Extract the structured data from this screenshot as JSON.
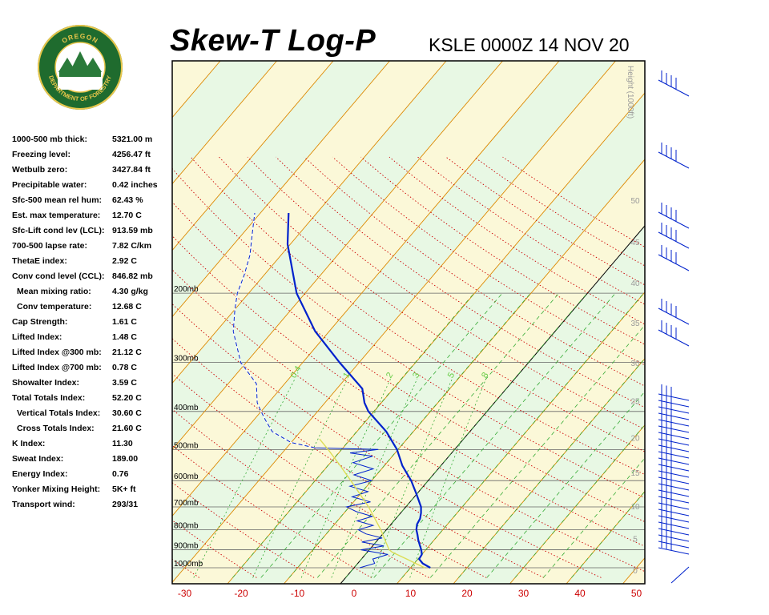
{
  "header": {
    "title": "Skew-T Log-P",
    "station": "KSLE 0000Z 14 NOV 20"
  },
  "logo": {
    "text_top": "OREGON",
    "text_bottom": "DEPARTMENT OF FORESTRY"
  },
  "indices": [
    {
      "label": "1000-500 mb thick:",
      "value": "5321.00 m"
    },
    {
      "label": "Freezing level:",
      "value": "4256.47 ft"
    },
    {
      "label": "Wetbulb zero:",
      "value": "3427.84 ft"
    },
    {
      "label": "Precipitable water:",
      "value": "0.42 inches"
    },
    {
      "label": "Sfc-500 mean rel hum:",
      "value": "62.43 %"
    },
    {
      "label": "Est. max temperature:",
      "value": "12.70 C"
    },
    {
      "label": "Sfc-Lift cond lev (LCL):",
      "value": "913.59 mb"
    },
    {
      "label": "700-500 lapse rate:",
      "value": "7.82 C/km"
    },
    {
      "label": "ThetaE index:",
      "value": "2.92 C"
    },
    {
      "label": "Conv cond level (CCL):",
      "value": "846.82 mb"
    },
    {
      "label": "Mean mixing ratio:",
      "value": "4.30 g/kg",
      "indent": true
    },
    {
      "label": "Conv temperature:",
      "value": "12.68 C",
      "indent": true
    },
    {
      "label": "Cap Strength:",
      "value": "1.61 C"
    },
    {
      "label": "Lifted Index:",
      "value": "1.48 C"
    },
    {
      "label": "Lifted Index @300 mb:",
      "value": "21.12 C"
    },
    {
      "label": "Lifted Index @700 mb:",
      "value": "0.78 C"
    },
    {
      "label": "Showalter Index:",
      "value": "3.59 C"
    },
    {
      "label": "Total Totals Index:",
      "value": "52.20 C"
    },
    {
      "label": "Vertical Totals Index:",
      "value": "30.60 C",
      "indent": true
    },
    {
      "label": "Cross Totals Index:",
      "value": "21.60 C",
      "indent": true
    },
    {
      "label": "K Index:",
      "value": "11.30"
    },
    {
      "label": "Sweat Index:",
      "value": "189.00"
    },
    {
      "label": "Energy Index:",
      "value": "0.76"
    },
    {
      "label": "Yonker Mixing Height:",
      "value": "5K+ ft"
    },
    {
      "label": "Transport wind:",
      "value": "293/31"
    }
  ],
  "chart_data": {
    "type": "line",
    "x_ticks": [
      -30,
      -20,
      -10,
      0,
      10,
      20,
      30,
      40,
      50
    ],
    "pressure_levels": [
      {
        "p": 200,
        "label": "200mb"
      },
      {
        "p": 300,
        "label": "300mb"
      },
      {
        "p": 400,
        "label": "400mb"
      },
      {
        "p": 500,
        "label": "500mb"
      },
      {
        "p": 600,
        "label": "600mb"
      },
      {
        "p": 700,
        "label": "700mb"
      },
      {
        "p": 800,
        "label": "800mb"
      },
      {
        "p": 900,
        "label": "900mb"
      },
      {
        "p": 1000,
        "label": "1000mb"
      }
    ],
    "height_axis_label": "Height (1000ft)",
    "height_ticks": [
      0,
      5,
      10,
      15,
      20,
      25,
      30,
      35,
      40,
      45,
      50
    ],
    "mixing_ratio_labels": [
      "0.4",
      "1",
      "2",
      "3",
      "5",
      "8"
    ],
    "mixing_ratios": [
      0.4,
      1,
      2,
      3,
      5,
      8
    ],
    "colors": {
      "temperature": "#0022cc",
      "dewpoint": "#0022cc",
      "parcel": "#dddd55",
      "isotherm": "#dd8800",
      "dry_adiabat": "#cc0000",
      "moist_adiabat": "#33aa33",
      "mixing_ratio": "#33aa33",
      "band_green": "#e8f8e4",
      "band_yellow": "#fbf8d8"
    },
    "series": [
      {
        "style": "solid",
        "points": [
          [
            1000,
            13.5
          ],
          [
            975,
            11.5
          ],
          [
            950,
            10.2
          ],
          [
            925,
            10
          ],
          [
            900,
            9.2
          ],
          [
            875,
            8.2
          ],
          [
            850,
            7.2
          ],
          [
            825,
            6.3
          ],
          [
            800,
            5.3
          ],
          [
            775,
            4.6
          ],
          [
            750,
            4.3
          ],
          [
            725,
            3.6
          ],
          [
            700,
            2.7
          ],
          [
            650,
            0.0
          ],
          [
            600,
            -3.0
          ],
          [
            550,
            -6.8
          ],
          [
            500,
            -10.2
          ],
          [
            450,
            -14.8
          ],
          [
            400,
            -21.0
          ],
          [
            380,
            -23.0
          ],
          [
            350,
            -25.5
          ],
          [
            300,
            -33.5
          ],
          [
            250,
            -42.5
          ],
          [
            200,
            -51.5
          ],
          [
            150,
            -60.5
          ],
          [
            125,
            -65.0
          ]
        ]
      },
      {
        "style": "wiggly",
        "points": [
          [
            1000,
            1.0
          ],
          [
            975,
            3.0
          ],
          [
            950,
            2.0
          ],
          [
            925,
            4.0
          ],
          [
            900,
            -1.5
          ],
          [
            880,
            2.0
          ],
          [
            860,
            -2.5
          ],
          [
            840,
            0.5
          ],
          [
            820,
            -3.0
          ],
          [
            800,
            -5.0
          ],
          [
            780,
            -3.0
          ],
          [
            760,
            -6.5
          ],
          [
            740,
            -4.5
          ],
          [
            720,
            -8.0
          ],
          [
            700,
            -10.5
          ],
          [
            680,
            -7.0
          ],
          [
            660,
            -11.0
          ],
          [
            640,
            -9.0
          ],
          [
            620,
            -13.0
          ],
          [
            600,
            -10.0
          ],
          [
            580,
            -14.0
          ],
          [
            560,
            -11.5
          ],
          [
            540,
            -16.0
          ],
          [
            520,
            -13.5
          ],
          [
            510,
            -18.0
          ],
          [
            500,
            -13.5
          ],
          [
            495,
            -25.0
          ],
          [
            480,
            -30.0
          ],
          [
            450,
            -35.0
          ],
          [
            420,
            -38.0
          ],
          [
            400,
            -40.0
          ],
          [
            380,
            -42.0
          ],
          [
            340,
            -45.0
          ],
          [
            300,
            -51.0
          ],
          [
            250,
            -57.0
          ],
          [
            220,
            -60.0
          ],
          [
            200,
            -62.0
          ],
          [
            180,
            -63.5
          ],
          [
            160,
            -65.5
          ],
          [
            140,
            -68.5
          ],
          [
            125,
            -71.0
          ]
        ]
      },
      {
        "style": "parcel",
        "points": [
          [
            1000,
            12.5
          ],
          [
            950,
            8.0
          ],
          [
            914,
            4.5
          ],
          [
            900,
            3.5
          ],
          [
            850,
            1.3
          ],
          [
            800,
            -1.0
          ],
          [
            750,
            -3.7
          ],
          [
            700,
            -6.6
          ],
          [
            650,
            -10.0
          ],
          [
            600,
            -13.7
          ],
          [
            550,
            -17.8
          ],
          [
            500,
            -22.4
          ],
          [
            470,
            -25.5
          ]
        ]
      }
    ]
  }
}
